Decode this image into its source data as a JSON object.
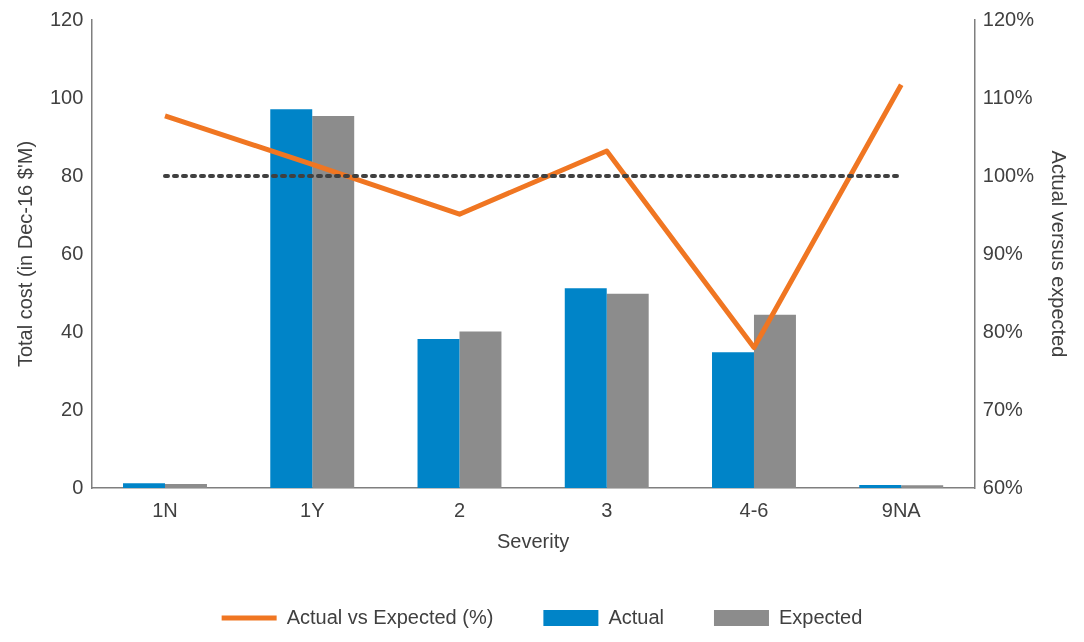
{
  "chart_data": {
    "type": "bar",
    "xlabel": "Severity",
    "ylabel": "Total cost (in Dec-16 $'M)",
    "y2label": "Actual versus expected",
    "categories": [
      "1N",
      "1Y",
      "2",
      "3",
      "4-6",
      "9NA"
    ],
    "series": [
      {
        "name": "Actual",
        "color": "#0084c8",
        "values": [
          1.2,
          97.1,
          38.2,
          51.2,
          34.8,
          0.8
        ]
      },
      {
        "name": "Expected",
        "color": "#8c8c8c",
        "values": [
          1.0,
          95.4,
          40.1,
          49.8,
          44.4,
          0.7
        ]
      },
      {
        "name": "Actual vs Expected (%)",
        "type": "line",
        "axis": "y2",
        "color": "#f07622",
        "values": [
          107.7,
          101.5,
          95.1,
          103.2,
          78.0,
          111.7
        ]
      }
    ],
    "ylim": [
      0,
      120
    ],
    "yticks": [
      0,
      20,
      40,
      60,
      80,
      100,
      120
    ],
    "y2lim": [
      60,
      120
    ],
    "y2ticks": [
      {
        "value": 60,
        "label": "60%"
      },
      {
        "value": 70,
        "label": "70%"
      },
      {
        "value": 80,
        "label": "80%"
      },
      {
        "value": 90,
        "label": "90%"
      },
      {
        "value": 100,
        "label": "100%"
      },
      {
        "value": 110,
        "label": "110%"
      },
      {
        "value": 120,
        "label": "120%"
      }
    ],
    "ref_lines": [
      {
        "axis": "y2",
        "value": 100,
        "color": "#404040",
        "line_style": "dotted"
      }
    ],
    "marker": "none",
    "grid": false,
    "legend": "bottom"
  }
}
